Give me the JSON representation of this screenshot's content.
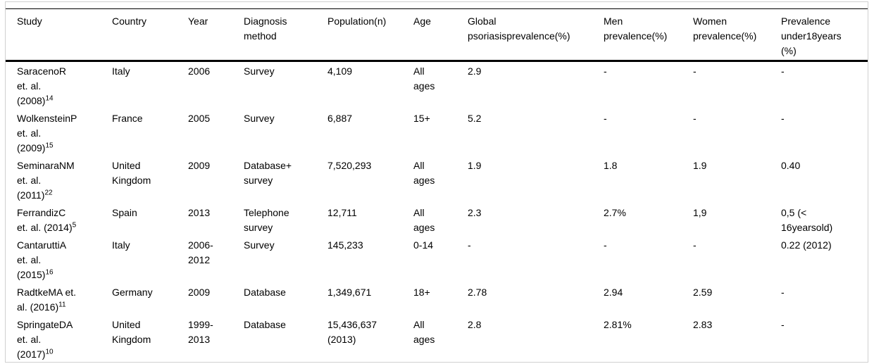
{
  "table": {
    "columns": [
      {
        "key": "study",
        "label": "Study"
      },
      {
        "key": "country",
        "label": "Country"
      },
      {
        "key": "year",
        "label": "Year"
      },
      {
        "key": "diagnosis",
        "label": "Diagnosis method"
      },
      {
        "key": "population",
        "label": "Population(n)"
      },
      {
        "key": "age",
        "label": "Age"
      },
      {
        "key": "global",
        "label": "Global psoriasisprevalence(%)"
      },
      {
        "key": "men",
        "label": "Men prevalence(%)"
      },
      {
        "key": "women",
        "label": "Women prevalence(%)"
      },
      {
        "key": "under18",
        "label": "Prevalence under18years (%)"
      }
    ],
    "rows": [
      {
        "study": "SaracenoR et. al. (2008)",
        "study_sup": "14",
        "country": "Italy",
        "year": "2006",
        "diagnosis": "Survey",
        "population": "4,109",
        "age": "All ages",
        "global": "2.9",
        "men": "-",
        "women": "-",
        "under18": "-"
      },
      {
        "study": "WolkensteinP et. al. (2009)",
        "study_sup": "15",
        "country": "France",
        "year": "2005",
        "diagnosis": "Survey",
        "population": "6,887",
        "age": "15+",
        "global": "5.2",
        "men": "-",
        "women": "-",
        "under18": "-"
      },
      {
        "study": "SeminaraNM et. al. (2011)",
        "study_sup": "22",
        "country": "United Kingdom",
        "year": "2009",
        "diagnosis": "Database+ survey",
        "population": "7,520,293",
        "age": "All ages",
        "global": "1.9",
        "men": "1.8",
        "women": "1.9",
        "under18": "0.40"
      },
      {
        "study": "FerrandizC et. al. (2014)",
        "study_sup": "5",
        "country": "Spain",
        "year": "2013",
        "diagnosis": "Telephone survey",
        "population": "12,711",
        "age": "All ages",
        "global": "2.3",
        "men": "2.7%",
        "women": "1,9",
        "under18": "0,5 (< 16yearsold)"
      },
      {
        "study": "CantaruttiA et. al. (2015)",
        "study_sup": "16",
        "country": "Italy",
        "year": "2006-2012",
        "diagnosis": "Survey",
        "population": "145,233",
        "age": "0-14",
        "global": "-",
        "men": "-",
        "women": "-",
        "under18": "0.22 (2012)"
      },
      {
        "study": "RadtkeMA et. al. (2016)",
        "study_sup": "11",
        "country": "Germany",
        "year": "2009",
        "diagnosis": "Database",
        "population": "1,349,671",
        "age": "18+",
        "global": "2.78",
        "men": "2.94",
        "women": "2.59",
        "under18": "-"
      },
      {
        "study": "SpringateDA et. al. (2017)",
        "study_sup": "10",
        "country": "United Kingdom",
        "year": "1999-2013",
        "diagnosis": "Database",
        "population": "15,436,637 (2013)",
        "age": "All ages",
        "global": "2.8",
        "men": "2.81%",
        "women": "2.83",
        "under18": "-"
      }
    ]
  }
}
